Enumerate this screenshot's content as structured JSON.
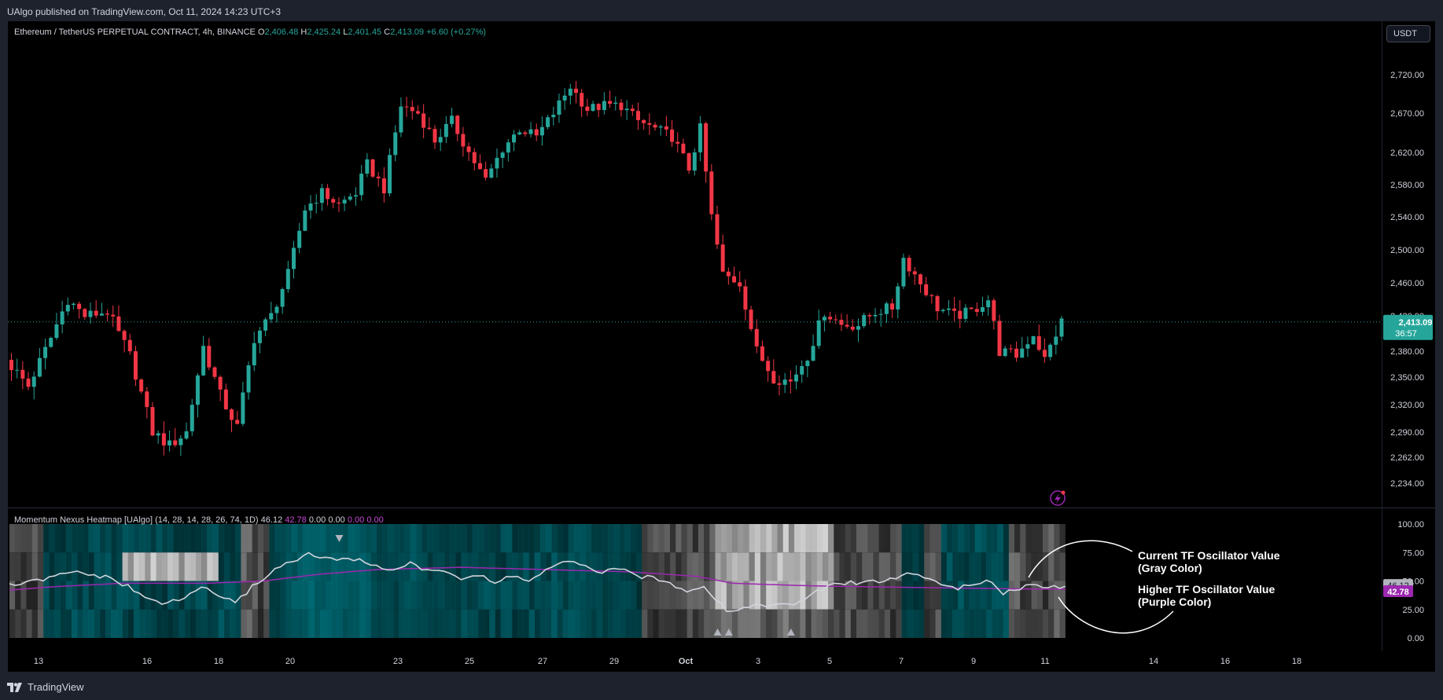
{
  "header": {
    "published": "UAlgo published on TradingView.com, Oct 11, 2024 14:23 UTC+3"
  },
  "footer": {
    "brand": "TradingView"
  },
  "currency_button": "USDT",
  "legend": {
    "symbol": "Ethereum / TetherUS PERPETUAL CONTRACT, 4h, BINANCE",
    "o_label": "O",
    "o": "2,406.48",
    "h_label": "H",
    "h": "2,425.24",
    "l_label": "L",
    "l": "2,401.45",
    "c_label": "C",
    "c": "2,413.09",
    "change": "+6.60 (+0.27%)"
  },
  "indicator_legend": {
    "name": "Momentum Nexus Heatmap [UAlgo] (14, 28, 14, 28, 26, 74, 1D)",
    "v1": "46.12",
    "v2": "42.78",
    "v3": "0.00",
    "v4": "0.00",
    "v5": "0.00",
    "v6": "0.00"
  },
  "annotations": {
    "current_line1": "Current TF Oscillator Value",
    "current_line2": "(Gray Color)",
    "higher_line1": "Higher TF Oscillator Value",
    "higher_line2": "(Purple Color)"
  },
  "price_badge": {
    "price": "2,413.09",
    "countdown": "36:57"
  },
  "osc_badges": {
    "gray": "46.12",
    "purple": "42.78"
  },
  "colors": {
    "up": "#26a69a",
    "down": "#f23645",
    "purple": "#9c27b0",
    "gray_line": "#d1d4dc",
    "heat_teal": "#00838f"
  },
  "chart_data": [
    {
      "type": "candlestick",
      "title": "Ethereum / TetherUS PERPETUAL CONTRACT, 4h, BINANCE",
      "price_axis_ticks": [
        "2,720.00",
        "2,670.00",
        "2,620.00",
        "2,580.00",
        "2,540.00",
        "2,500.00",
        "2,460.00",
        "2,420.00",
        "2,380.00",
        "2,350.00",
        "2,320.00",
        "2,290.00",
        "2,262.00",
        "2,234.00"
      ],
      "time_axis_ticks": [
        "13",
        "16",
        "18",
        "20",
        "23",
        "25",
        "27",
        "29",
        "Oct",
        "3",
        "5",
        "7",
        "9",
        "11",
        "14",
        "16",
        "18"
      ],
      "last_price": 2413.09,
      "path": [
        {
          "t": 0,
          "p": 2370
        },
        {
          "t": 4,
          "p": 2340
        },
        {
          "t": 8,
          "p": 2395
        },
        {
          "t": 11,
          "p": 2440
        },
        {
          "t": 14,
          "p": 2420
        },
        {
          "t": 18,
          "p": 2425
        },
        {
          "t": 22,
          "p": 2375
        },
        {
          "t": 26,
          "p": 2290
        },
        {
          "t": 29,
          "p": 2275
        },
        {
          "t": 32,
          "p": 2290
        },
        {
          "t": 35,
          "p": 2385
        },
        {
          "t": 38,
          "p": 2330
        },
        {
          "t": 41,
          "p": 2295
        },
        {
          "t": 44,
          "p": 2395
        },
        {
          "t": 47,
          "p": 2420
        },
        {
          "t": 50,
          "p": 2470
        },
        {
          "t": 53,
          "p": 2550
        },
        {
          "t": 56,
          "p": 2570
        },
        {
          "t": 59,
          "p": 2555
        },
        {
          "t": 62,
          "p": 2570
        },
        {
          "t": 64,
          "p": 2605
        },
        {
          "t": 67,
          "p": 2575
        },
        {
          "t": 70,
          "p": 2680
        },
        {
          "t": 73,
          "p": 2670
        },
        {
          "t": 76,
          "p": 2635
        },
        {
          "t": 79,
          "p": 2660
        },
        {
          "t": 82,
          "p": 2620
        },
        {
          "t": 85,
          "p": 2585
        },
        {
          "t": 88,
          "p": 2625
        },
        {
          "t": 91,
          "p": 2650
        },
        {
          "t": 94,
          "p": 2640
        },
        {
          "t": 97,
          "p": 2670
        },
        {
          "t": 100,
          "p": 2705
        },
        {
          "t": 103,
          "p": 2675
        },
        {
          "t": 106,
          "p": 2680
        },
        {
          "t": 109,
          "p": 2680
        },
        {
          "t": 112,
          "p": 2660
        },
        {
          "t": 115,
          "p": 2650
        },
        {
          "t": 118,
          "p": 2640
        },
        {
          "t": 121,
          "p": 2600
        },
        {
          "t": 123,
          "p": 2650
        },
        {
          "t": 125,
          "p": 2540
        },
        {
          "t": 127,
          "p": 2470
        },
        {
          "t": 130,
          "p": 2460
        },
        {
          "t": 133,
          "p": 2380
        },
        {
          "t": 136,
          "p": 2350
        },
        {
          "t": 139,
          "p": 2345
        },
        {
          "t": 142,
          "p": 2375
        },
        {
          "t": 145,
          "p": 2425
        },
        {
          "t": 148,
          "p": 2410
        },
        {
          "t": 151,
          "p": 2410
        },
        {
          "t": 154,
          "p": 2425
        },
        {
          "t": 157,
          "p": 2430
        },
        {
          "t": 159,
          "p": 2490
        },
        {
          "t": 162,
          "p": 2460
        },
        {
          "t": 165,
          "p": 2430
        },
        {
          "t": 168,
          "p": 2420
        },
        {
          "t": 171,
          "p": 2425
        },
        {
          "t": 174,
          "p": 2440
        },
        {
          "t": 176,
          "p": 2380
        },
        {
          "t": 179,
          "p": 2375
        },
        {
          "t": 182,
          "p": 2400
        },
        {
          "t": 184,
          "p": 2370
        },
        {
          "t": 186,
          "p": 2400
        },
        {
          "t": 187,
          "p": 2413
        }
      ]
    },
    {
      "type": "heatmap",
      "title": "Momentum Nexus Heatmap [UAlgo]",
      "y_axis_ticks": [
        "100.00",
        "75.00",
        "50.00",
        "25.00",
        "0.00"
      ],
      "ylim": [
        0,
        100
      ],
      "bars": 187,
      "current_tf_oscillator": {
        "name": "Current TF Oscillator Value",
        "path": [
          {
            "t": 0,
            "v": 46
          },
          {
            "t": 5,
            "v": 50
          },
          {
            "t": 9,
            "v": 55
          },
          {
            "t": 12,
            "v": 58
          },
          {
            "t": 15,
            "v": 55
          },
          {
            "t": 18,
            "v": 52
          },
          {
            "t": 21,
            "v": 45
          },
          {
            "t": 24,
            "v": 35
          },
          {
            "t": 28,
            "v": 30
          },
          {
            "t": 31,
            "v": 35
          },
          {
            "t": 34,
            "v": 45
          },
          {
            "t": 37,
            "v": 38
          },
          {
            "t": 40,
            "v": 30
          },
          {
            "t": 43,
            "v": 45
          },
          {
            "t": 47,
            "v": 60
          },
          {
            "t": 50,
            "v": 68
          },
          {
            "t": 53,
            "v": 73
          },
          {
            "t": 56,
            "v": 70
          },
          {
            "t": 59,
            "v": 68
          },
          {
            "t": 62,
            "v": 70
          },
          {
            "t": 65,
            "v": 62
          },
          {
            "t": 68,
            "v": 60
          },
          {
            "t": 71,
            "v": 66
          },
          {
            "t": 74,
            "v": 58
          },
          {
            "t": 77,
            "v": 60
          },
          {
            "t": 80,
            "v": 52
          },
          {
            "t": 83,
            "v": 55
          },
          {
            "t": 86,
            "v": 48
          },
          {
            "t": 89,
            "v": 55
          },
          {
            "t": 92,
            "v": 50
          },
          {
            "t": 96,
            "v": 62
          },
          {
            "t": 99,
            "v": 67
          },
          {
            "t": 102,
            "v": 62
          },
          {
            "t": 105,
            "v": 58
          },
          {
            "t": 108,
            "v": 60
          },
          {
            "t": 111,
            "v": 55
          },
          {
            "t": 114,
            "v": 52
          },
          {
            "t": 117,
            "v": 48
          },
          {
            "t": 120,
            "v": 42
          },
          {
            "t": 123,
            "v": 46
          },
          {
            "t": 125,
            "v": 35
          },
          {
            "t": 127,
            "v": 24
          },
          {
            "t": 130,
            "v": 26
          },
          {
            "t": 133,
            "v": 30
          },
          {
            "t": 136,
            "v": 28
          },
          {
            "t": 139,
            "v": 30
          },
          {
            "t": 142,
            "v": 37
          },
          {
            "t": 145,
            "v": 46
          },
          {
            "t": 148,
            "v": 48
          },
          {
            "t": 151,
            "v": 49
          },
          {
            "t": 154,
            "v": 50
          },
          {
            "t": 157,
            "v": 52
          },
          {
            "t": 159,
            "v": 57
          },
          {
            "t": 162,
            "v": 54
          },
          {
            "t": 165,
            "v": 47
          },
          {
            "t": 168,
            "v": 44
          },
          {
            "t": 171,
            "v": 46
          },
          {
            "t": 174,
            "v": 50
          },
          {
            "t": 176,
            "v": 40
          },
          {
            "t": 179,
            "v": 44
          },
          {
            "t": 182,
            "v": 48
          },
          {
            "t": 184,
            "v": 44
          },
          {
            "t": 187,
            "v": 46.12
          }
        ]
      },
      "higher_tf_oscillator": {
        "name": "Higher TF Oscillator Value",
        "path": [
          {
            "t": 0,
            "v": 42
          },
          {
            "t": 8,
            "v": 45
          },
          {
            "t": 20,
            "v": 48
          },
          {
            "t": 35,
            "v": 48
          },
          {
            "t": 45,
            "v": 50
          },
          {
            "t": 55,
            "v": 56
          },
          {
            "t": 65,
            "v": 60
          },
          {
            "t": 80,
            "v": 62
          },
          {
            "t": 95,
            "v": 60
          },
          {
            "t": 110,
            "v": 58
          },
          {
            "t": 122,
            "v": 54
          },
          {
            "t": 128,
            "v": 48
          },
          {
            "t": 140,
            "v": 46
          },
          {
            "t": 150,
            "v": 45
          },
          {
            "t": 165,
            "v": 44
          },
          {
            "t": 180,
            "v": 43
          },
          {
            "t": 187,
            "v": 42.78
          }
        ]
      }
    }
  ]
}
